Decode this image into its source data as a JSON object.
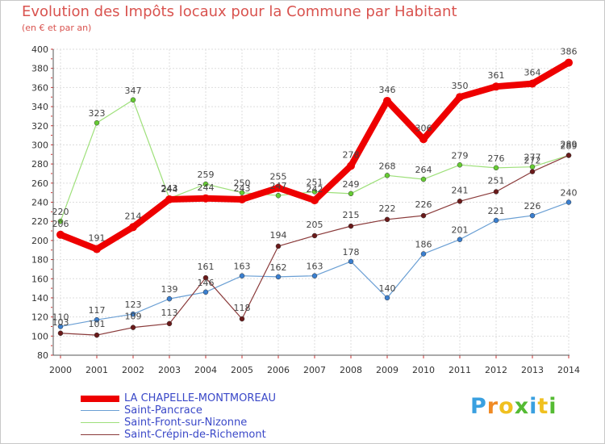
{
  "chart_data": {
    "type": "line",
    "title": "Evolution des Impôts locaux pour la Commune par Habitant",
    "subtitle": "(en € et par an)",
    "xlabel": "",
    "ylabel": "",
    "x": [
      "2000",
      "2001",
      "2002",
      "2003",
      "2004",
      "2005",
      "2006",
      "2007",
      "2008",
      "2009",
      "2010",
      "2011",
      "2012",
      "2013",
      "2014"
    ],
    "ylim": [
      80,
      400
    ],
    "yticks": [
      80,
      100,
      120,
      140,
      160,
      180,
      200,
      220,
      240,
      260,
      280,
      300,
      320,
      340,
      360,
      380,
      400
    ],
    "grid": true,
    "legend_position": "bottom-left",
    "series": [
      {
        "name": "LA CHAPELLE-MONTMOREAU",
        "color": "#ee0000",
        "marker": "#ee0000",
        "width": 8,
        "values": [
          206,
          191,
          214,
          243,
          244,
          243,
          255,
          242,
          278,
          346,
          306,
          350,
          361,
          364,
          386
        ]
      },
      {
        "name": "Saint-Pancrace",
        "color": "#6a9fd4",
        "marker": "#3a7fd0",
        "width": 1.2,
        "values": [
          110,
          117,
          123,
          139,
          146,
          163,
          162,
          163,
          178,
          140,
          186,
          201,
          221,
          226,
          240
        ]
      },
      {
        "name": "Saint-Front-sur-Nizonne",
        "color": "#9ee07a",
        "marker": "#66cc33",
        "width": 1.2,
        "values": [
          220,
          323,
          347,
          244,
          259,
          250,
          247,
          251,
          249,
          268,
          264,
          279,
          276,
          277,
          289
        ]
      },
      {
        "name": "Saint-Crépin-de-Richemont",
        "color": "#8a3a3a",
        "marker": "#6a1a1a",
        "width": 1.2,
        "values": [
          103,
          101,
          109,
          113,
          161,
          118,
          194,
          205,
          215,
          222,
          226,
          241,
          251,
          272,
          289
        ]
      }
    ]
  },
  "logo": {
    "letters": [
      "P",
      "r",
      "o",
      "x",
      "i",
      "t",
      "i"
    ],
    "colors": [
      "#3aa0e0",
      "#f08a24",
      "#f0c020",
      "#55bb33",
      "#3aa0e0",
      "#f0c020",
      "#55bb33"
    ]
  }
}
